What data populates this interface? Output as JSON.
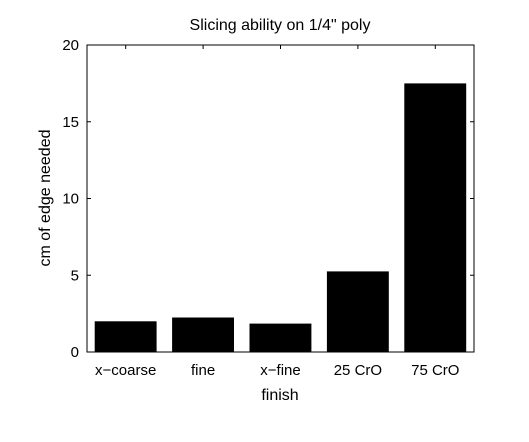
{
  "chart_data": {
    "type": "bar",
    "title": "Slicing ability on 1/4\" poly",
    "xlabel": "finish",
    "ylabel": "cm of edge needed",
    "categories": [
      "x−coarse",
      "fine",
      "x−fine",
      "25 CrO",
      "75 CrO"
    ],
    "values": [
      2.0,
      2.25,
      1.85,
      5.25,
      17.5
    ],
    "ylim": [
      0,
      20
    ],
    "yticks": [
      0,
      5,
      10,
      15,
      20
    ],
    "grid": false,
    "bar_color": "#000000",
    "axis_color": "#000000",
    "background": "#ffffff"
  }
}
